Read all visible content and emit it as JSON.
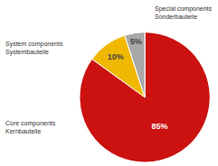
{
  "chart_data": {
    "type": "pie",
    "categories": [
      "Core components\nKernbauteile",
      "System components\nSystembauteile",
      "Special components\nSonderbauteile"
    ],
    "values": [
      85,
      10,
      5
    ],
    "value_labels": [
      "85%",
      "10%",
      "5%"
    ],
    "data_labels": true,
    "colors": [
      "#cc1111",
      "#f0b800",
      "#a8a8a8"
    ]
  }
}
